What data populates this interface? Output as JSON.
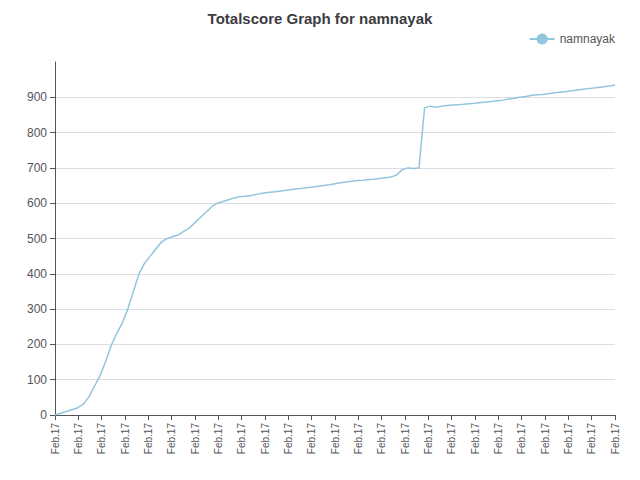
{
  "chart_data": {
    "type": "line",
    "title": "Totalscore Graph for namnayak",
    "x": [
      0,
      1,
      2,
      3,
      4,
      5,
      6,
      7,
      8,
      9,
      10,
      11,
      12,
      13,
      14,
      15,
      16,
      17,
      18,
      19,
      20,
      21,
      22,
      23,
      24,
      25,
      26,
      27,
      28,
      29,
      30,
      31,
      32,
      33,
      34,
      35,
      36,
      37,
      38,
      39,
      40,
      41,
      42,
      43,
      44,
      45,
      46,
      47,
      48,
      49,
      50,
      51,
      52,
      53,
      54,
      55,
      56,
      57,
      58,
      59,
      60,
      61,
      62,
      63,
      64,
      65,
      66,
      67,
      68,
      69,
      70,
      71,
      72,
      73,
      74,
      75,
      76,
      77,
      78,
      79,
      80,
      81,
      82,
      83,
      84,
      85,
      86,
      87,
      88,
      89,
      90,
      91,
      92,
      93,
      94,
      95,
      96,
      97,
      98,
      99,
      100
    ],
    "series": [
      {
        "name": "namnayak",
        "color": "#92c5de",
        "values": [
          0,
          5,
          10,
          15,
          20,
          30,
          50,
          80,
          110,
          150,
          195,
          230,
          260,
          300,
          350,
          400,
          430,
          450,
          470,
          490,
          500,
          505,
          510,
          520,
          530,
          545,
          560,
          575,
          590,
          600,
          605,
          610,
          615,
          618,
          620,
          622,
          625,
          628,
          630,
          632,
          634,
          636,
          638,
          640,
          642,
          644,
          646,
          648,
          650,
          652,
          655,
          658,
          660,
          662,
          664,
          665,
          667,
          668,
          670,
          672,
          674,
          680,
          695,
          700,
          698,
          700,
          870,
          875,
          872,
          875,
          877,
          878,
          879,
          880,
          882,
          883,
          885,
          887,
          888,
          890,
          892,
          895,
          897,
          900,
          902,
          905,
          907,
          908,
          910,
          912,
          914,
          916,
          918,
          920,
          922,
          924,
          926,
          928,
          930,
          932,
          935
        ]
      }
    ],
    "xlim": [
      0,
      100
    ],
    "xticks": [
      {
        "value": 0,
        "label": "Feb.17"
      },
      {
        "value": 4.166666666666667,
        "label": "Feb.17"
      },
      {
        "value": 8.333333333333334,
        "label": "Feb.17"
      },
      {
        "value": 12.5,
        "label": "Feb.17"
      },
      {
        "value": 16.666666666666668,
        "label": "Feb.17"
      },
      {
        "value": 20.833333333333336,
        "label": "Feb.17"
      },
      {
        "value": 25,
        "label": "Feb.17"
      },
      {
        "value": 29.166666666666668,
        "label": "Feb.17"
      },
      {
        "value": 33.333333333333336,
        "label": "Feb.17"
      },
      {
        "value": 37.5,
        "label": "Feb.17"
      },
      {
        "value": 41.66666666666667,
        "label": "Feb.17"
      },
      {
        "value": 45.833333333333336,
        "label": "Feb.17"
      },
      {
        "value": 50,
        "label": "Feb.17"
      },
      {
        "value": 54.16666666666667,
        "label": "Feb.17"
      },
      {
        "value": 58.333333333333336,
        "label": "Feb.17"
      },
      {
        "value": 62.5,
        "label": "Feb.17"
      },
      {
        "value": 66.66666666666667,
        "label": "Feb.17"
      },
      {
        "value": 70.83333333333334,
        "label": "Feb.17"
      },
      {
        "value": 75,
        "label": "Feb.17"
      },
      {
        "value": 79.16666666666667,
        "label": "Feb.17"
      },
      {
        "value": 83.33333333333334,
        "label": "Feb.17"
      },
      {
        "value": 87.5,
        "label": "Feb.17"
      },
      {
        "value": 91.66666666666667,
        "label": "Feb.17"
      },
      {
        "value": 95.83333333333334,
        "label": "Feb.17"
      },
      {
        "value": 100,
        "label": "Feb.17"
      }
    ],
    "ylim": [
      0,
      1000
    ],
    "yticks": [
      0,
      100,
      200,
      300,
      400,
      500,
      600,
      700,
      800,
      900
    ],
    "grid": true,
    "legend": "upper right"
  }
}
